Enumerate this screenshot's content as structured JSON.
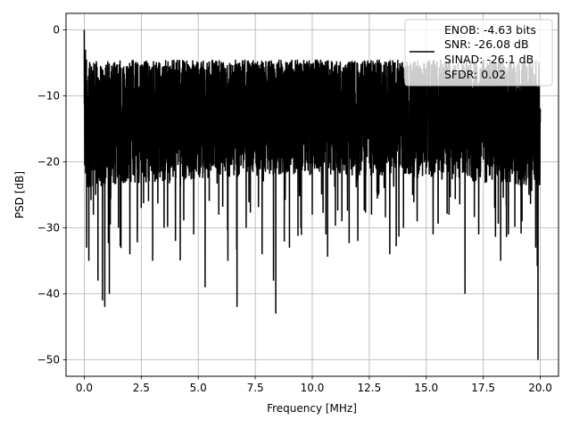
{
  "chart_data": {
    "type": "line",
    "title": "",
    "xlabel": "Frequency [MHz]",
    "ylabel": "PSD [dB]",
    "xlim": [
      -0.8,
      20.8
    ],
    "ylim": [
      -52.5,
      2.5
    ],
    "xticks": [
      0.0,
      2.5,
      5.0,
      7.5,
      10.0,
      12.5,
      15.0,
      17.5,
      20.0
    ],
    "xtick_labels": [
      "0.0",
      "2.5",
      "5.0",
      "7.5",
      "10.0",
      "12.5",
      "15.0",
      "17.5",
      "20.0"
    ],
    "yticks": [
      0,
      -10,
      -20,
      -30,
      -40,
      -50
    ],
    "ytick_labels": [
      "0",
      "−10",
      "−20",
      "−30",
      "−40",
      "−50"
    ],
    "grid": true,
    "legend_position": "top-right",
    "legend_lines": [
      "ENOB: -4.63 bits",
      "SNR: -26.08 dB",
      "SINAD: -26.1 dB",
      "SFDR: 0.02"
    ],
    "series": [
      {
        "color": "#000000",
        "description": "dense noise-like PSD trace, roughly -5 to -28 dB with spikes",
        "x": [
          0.0,
          0.02,
          0.05,
          0.1,
          0.15,
          0.2,
          0.3,
          0.4,
          0.5,
          0.6,
          0.65,
          0.8,
          0.9,
          0.95,
          1.1,
          1.3,
          1.5,
          1.8,
          2.0,
          2.3,
          2.5,
          2.8,
          3.0,
          3.2,
          3.5,
          3.8,
          4.0,
          4.4,
          4.8,
          5.0,
          5.3,
          5.6,
          5.9,
          6.0,
          6.3,
          6.7,
          6.8,
          7.1,
          7.5,
          7.8,
          8.0,
          8.3,
          8.4,
          8.7,
          9.0,
          9.3,
          9.5,
          9.8,
          10.0,
          10.3,
          10.6,
          11.0,
          11.3,
          11.6,
          12.0,
          12.3,
          12.6,
          13.0,
          13.4,
          13.7,
          14.0,
          14.3,
          14.6,
          15.0,
          15.3,
          15.6,
          16.0,
          16.3,
          16.7,
          17.0,
          17.3,
          17.6,
          18.0,
          18.3,
          18.6,
          18.9,
          19.2,
          19.5,
          19.8,
          19.9,
          20.0
        ],
        "y": [
          0,
          -17,
          -3,
          -33,
          -22,
          -35,
          -12,
          -28,
          -25,
          -38,
          -13,
          -41,
          -42,
          -15,
          -40,
          -12,
          -30,
          -9,
          -34,
          -11,
          -27,
          -8,
          -35,
          -12,
          -30,
          -6,
          -32,
          -8,
          -31,
          -10,
          -39,
          -7,
          -28,
          -12,
          -35,
          -42,
          -9,
          -30,
          -5,
          -34,
          -10,
          -38,
          -43,
          -7,
          -33,
          -9,
          -30,
          -5,
          -28,
          -8,
          -31,
          -11,
          -29,
          -6,
          -32,
          -10,
          -28,
          -5,
          -34,
          -8,
          -30,
          -5,
          -29,
          -10,
          -31,
          -7,
          -28,
          -9,
          -40,
          -12,
          -31,
          -8,
          -27,
          -12,
          -31,
          -7,
          -29,
          -14,
          -33,
          -50,
          -12
        ]
      }
    ]
  }
}
